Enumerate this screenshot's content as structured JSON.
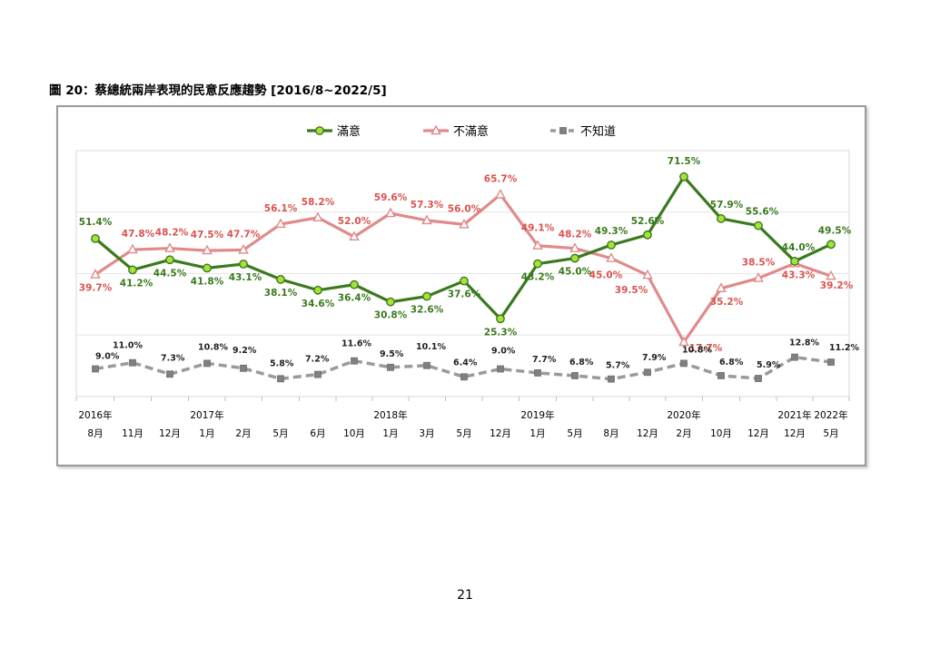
{
  "figure_title": "圖 20：蔡總統兩岸表現的民意反應趨勢 [2016/8~2022/5]",
  "page_number": "21",
  "colors": {
    "satisfied": "#3a7a1e",
    "satisfied_marker": "#a6e23a",
    "dissatisfied": "#e08a8a",
    "dissatisfied_label": "#d9534f",
    "unknown": "#9a9a9a",
    "unknown_marker": "#808080"
  },
  "chart_data": {
    "type": "line",
    "years": [
      "2016年",
      "",
      "",
      "2017年",
      "",
      "",
      "",
      "",
      "2018年",
      "",
      "",
      "",
      "2019年",
      "",
      "",
      "",
      "2020年",
      "",
      "",
      "2021年",
      "2022年"
    ],
    "months": [
      "8月",
      "11月",
      "12月",
      "1月",
      "2月",
      "5月",
      "6月",
      "10月",
      "1月",
      "3月",
      "5月",
      "12月",
      "1月",
      "5月",
      "8月",
      "12月",
      "2月",
      "10月",
      "12月",
      "12月",
      "5月"
    ],
    "series": [
      {
        "name": "滿意",
        "values": [
          51.4,
          41.2,
          44.5,
          41.8,
          43.1,
          38.1,
          34.6,
          36.4,
          30.8,
          32.6,
          37.6,
          25.3,
          43.2,
          45.0,
          49.3,
          52.6,
          71.5,
          57.9,
          55.6,
          44.0,
          49.5
        ],
        "labels": [
          "51.4%",
          "41.2%",
          "44.5%",
          "41.8%",
          "43.1%",
          "38.1%",
          "34.6%",
          "36.4%",
          "30.8%",
          "32.6%",
          "37.6%",
          "25.3%",
          "43.2%",
          "45.0%",
          "49.3%",
          "52.6%",
          "71.5%",
          "57.9%",
          "55.6%",
          "44.0%",
          "49.5%"
        ]
      },
      {
        "name": "不滿意",
        "values": [
          39.7,
          47.8,
          48.2,
          47.5,
          47.7,
          56.1,
          58.2,
          52.0,
          59.6,
          57.3,
          56.0,
          65.7,
          49.1,
          48.2,
          45.0,
          39.5,
          17.7,
          35.2,
          38.5,
          43.3,
          39.2
        ],
        "labels": [
          "39.7%",
          "47.8%",
          "48.2%",
          "47.5%",
          "47.7%",
          "56.1%",
          "58.2%",
          "52.0%",
          "59.6%",
          "57.3%",
          "56.0%",
          "65.7%",
          "49.1%",
          "48.2%",
          "45.0%",
          "39.5%",
          "17.7%",
          "35.2%",
          "38.5%",
          "43.3%",
          "39.2%"
        ]
      },
      {
        "name": "不知道",
        "values": [
          9.0,
          11.0,
          7.3,
          10.8,
          9.2,
          5.8,
          7.2,
          11.6,
          9.5,
          10.1,
          6.4,
          9.0,
          7.7,
          6.8,
          5.7,
          7.9,
          10.8,
          6.8,
          5.9,
          12.8,
          11.2
        ],
        "labels": [
          "9.0%",
          "11.0%",
          "7.3%",
          "10.8%",
          "9.2%",
          "5.8%",
          "7.2%",
          "11.6%",
          "9.5%",
          "10.1%",
          "6.4%",
          "9.0%",
          "7.7%",
          "6.8%",
          "5.7%",
          "7.9%",
          "10.8%",
          "6.8%",
          "5.9%",
          "12.8%",
          "11.2%"
        ]
      }
    ],
    "ylim": [
      0,
      80
    ],
    "grid": "horizontal",
    "legend": "top"
  }
}
